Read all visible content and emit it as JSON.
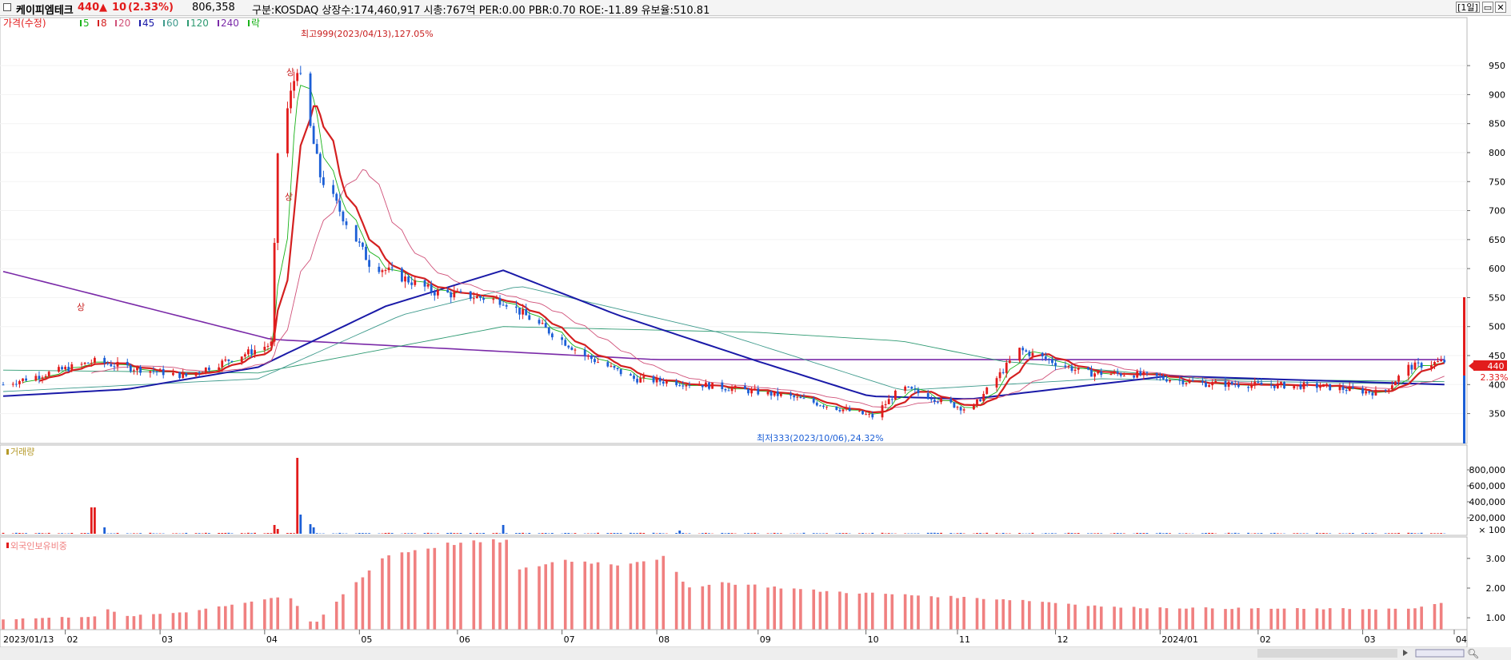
{
  "header": {
    "name": "케이피엠테크",
    "price": "440",
    "arrow": "▲",
    "change": "10",
    "change_pct": "(2.33%)",
    "volume": "806,358",
    "info": "구분:KOSDAQ  상장수:174,460,917  시총:767억  PER:0.00  PBR:0.70  ROE:-11.89  유보율:510.81",
    "period": "[1일]"
  },
  "legend": {
    "price": "가격(수정)",
    "ma": [
      "5",
      "8",
      "20",
      "45",
      "60",
      "120",
      "240"
    ],
    "rak": "락"
  },
  "colors": {
    "up": "#e21c1c",
    "down": "#1c5fd6",
    "ma5": "#19b219",
    "ma8": "#d42020",
    "ma20": "#d05078",
    "ma45": "#1a1aa8",
    "ma60": "#3e9a8c",
    "ma120": "#2e9a72",
    "ma240": "#7a2aa8",
    "foreign": "#f08080"
  },
  "annotations": {
    "high": "최고999(2023/04/13),127.05%",
    "low": "최저333(2023/10/06),24.32%",
    "upper_limit": "상"
  },
  "volume_panel": {
    "title": "거래량",
    "unit": "× 100"
  },
  "foreign_panel": {
    "title": "외국인보유비중"
  },
  "price_badge": {
    "price": "440",
    "pct": "2.33%"
  },
  "chart_data": [
    {
      "type": "candlestick",
      "title": "가격(수정)",
      "ylim": [
        315,
        990
      ],
      "y_ticks": [
        350,
        400,
        450,
        500,
        550,
        600,
        650,
        700,
        750,
        800,
        850,
        900,
        950
      ],
      "anchors": [
        {
          "date": "2023/01/13",
          "close": 400
        },
        {
          "date": "2023/02/10",
          "close": 440
        },
        {
          "date": "2023/02/20",
          "close": 430
        },
        {
          "date": "2023/03/10",
          "close": 415
        },
        {
          "date": "2023/04/05",
          "close": 470
        },
        {
          "date": "2023/04/07",
          "close": 800
        },
        {
          "date": "2023/04/13",
          "close": 950
        },
        {
          "date": "2023/04/20",
          "close": 760
        },
        {
          "date": "2023/05/05",
          "close": 610
        },
        {
          "date": "2023/05/25",
          "close": 560
        },
        {
          "date": "2023/06/15",
          "close": 545
        },
        {
          "date": "2023/07/10",
          "close": 450
        },
        {
          "date": "2023/07/25",
          "close": 410
        },
        {
          "date": "2023/08/15",
          "close": 400
        },
        {
          "date": "2023/09/10",
          "close": 380
        },
        {
          "date": "2023/10/06",
          "close": 345
        },
        {
          "date": "2023/10/15",
          "close": 395
        },
        {
          "date": "2023/11/05",
          "close": 355
        },
        {
          "date": "2023/11/20",
          "close": 460
        },
        {
          "date": "2023/12/10",
          "close": 420
        },
        {
          "date": "2023/12/25",
          "close": 418
        },
        {
          "date": "2024/01/15",
          "close": 402
        },
        {
          "date": "2024/02/20",
          "close": 397
        },
        {
          "date": "2024/03/10",
          "close": 385
        },
        {
          "date": "2024/03/18",
          "close": 430
        },
        {
          "date": "2024/03/29",
          "close": 440
        }
      ],
      "moving_averages": {
        "240": [
          {
            "date": "2023/01/13",
            "value": 595
          },
          {
            "date": "2023/04/05",
            "value": 478
          },
          {
            "date": "2023/08/01",
            "value": 443
          },
          {
            "date": "2024/03/29",
            "value": 443
          }
        ],
        "120": [
          {
            "date": "2023/01/13",
            "value": 425
          },
          {
            "date": "2023/04/01",
            "value": 420
          },
          {
            "date": "2023/06/15",
            "value": 500
          },
          {
            "date": "2023/09/01",
            "value": 490
          },
          {
            "date": "2023/10/15",
            "value": 475
          },
          {
            "date": "2023/11/15",
            "value": 440
          },
          {
            "date": "2024/01/15",
            "value": 410
          },
          {
            "date": "2024/03/29",
            "value": 405
          }
        ],
        "60": [
          {
            "date": "2023/01/13",
            "value": 388
          },
          {
            "date": "2023/04/01",
            "value": 410
          },
          {
            "date": "2023/05/15",
            "value": 520
          },
          {
            "date": "2023/06/20",
            "value": 570
          },
          {
            "date": "2023/08/20",
            "value": 490
          },
          {
            "date": "2023/10/15",
            "value": 390
          },
          {
            "date": "2023/12/15",
            "value": 410
          },
          {
            "date": "2024/03/29",
            "value": 400
          }
        ],
        "45": [
          {
            "date": "2023/01/13",
            "value": 380
          },
          {
            "date": "2023/02/20",
            "value": 392
          },
          {
            "date": "2023/04/01",
            "value": 430
          },
          {
            "date": "2023/05/10",
            "value": 535
          },
          {
            "date": "2023/06/15",
            "value": 597
          },
          {
            "date": "2023/07/20",
            "value": 520
          },
          {
            "date": "2023/09/01",
            "value": 440
          },
          {
            "date": "2023/10/05",
            "value": 380
          },
          {
            "date": "2023/11/05",
            "value": 375
          },
          {
            "date": "2024/01/05",
            "value": 415
          },
          {
            "date": "2024/03/29",
            "value": 400
          }
        ]
      }
    },
    {
      "type": "bar",
      "title": "거래량",
      "ylim": [
        0,
        1000000
      ],
      "y_ticks": [
        200000,
        400000,
        600000,
        800000
      ],
      "spikes": [
        {
          "date": "2023/02/09",
          "value": 330000
        },
        {
          "date": "2023/02/10",
          "value": 330000
        },
        {
          "date": "2023/02/13",
          "value": 80000
        },
        {
          "date": "2023/04/06",
          "value": 110000
        },
        {
          "date": "2023/04/07",
          "value": 60000
        },
        {
          "date": "2023/04/13",
          "value": 950000
        },
        {
          "date": "2023/04/14",
          "value": 240000
        },
        {
          "date": "2023/04/17",
          "value": 120000
        },
        {
          "date": "2023/04/18",
          "value": 80000
        },
        {
          "date": "2023/06/15",
          "value": 110000
        },
        {
          "date": "2023/08/08",
          "value": 40000
        }
      ]
    },
    {
      "type": "bar",
      "title": "외국인보유비중",
      "ylim": [
        0.6,
        3.8
      ],
      "y_ticks": [
        1.0,
        2.0,
        3.0
      ],
      "anchors": [
        {
          "date": "2023/01/13",
          "value": 0.95
        },
        {
          "date": "2023/02/10",
          "value": 1.05
        },
        {
          "date": "2023/02/13",
          "value": 1.3
        },
        {
          "date": "2023/02/20",
          "value": 1.05
        },
        {
          "date": "2023/03/10",
          "value": 1.2
        },
        {
          "date": "2023/04/10",
          "value": 1.75
        },
        {
          "date": "2023/04/18",
          "value": 0.75
        },
        {
          "date": "2023/04/28",
          "value": 1.9
        },
        {
          "date": "2023/05/10",
          "value": 3.1
        },
        {
          "date": "2023/05/30",
          "value": 3.5
        },
        {
          "date": "2023/06/16",
          "value": 3.6
        },
        {
          "date": "2023/06/20",
          "value": 2.6
        },
        {
          "date": "2023/07/03",
          "value": 2.95
        },
        {
          "date": "2023/07/20",
          "value": 2.8
        },
        {
          "date": "2023/08/04",
          "value": 3.05
        },
        {
          "date": "2023/08/10",
          "value": 2.0
        },
        {
          "date": "2023/08/20",
          "value": 2.2
        },
        {
          "date": "2023/09/20",
          "value": 1.9
        },
        {
          "date": "2023/11/20",
          "value": 1.6
        },
        {
          "date": "2023/12/20",
          "value": 1.35
        },
        {
          "date": "2024/02/15",
          "value": 1.3
        },
        {
          "date": "2024/03/20",
          "value": 1.3
        },
        {
          "date": "2024/03/29",
          "value": 1.55
        }
      ]
    }
  ],
  "x_axis": {
    "labels": [
      {
        "date": "2023/01/13",
        "text": "2023/01/13"
      },
      {
        "date": "2023/02/01",
        "text": "02"
      },
      {
        "date": "2023/03/02",
        "text": "03"
      },
      {
        "date": "2023/04/03",
        "text": "04"
      },
      {
        "date": "2023/05/02",
        "text": "05"
      },
      {
        "date": "2023/06/01",
        "text": "06"
      },
      {
        "date": "2023/07/03",
        "text": "07"
      },
      {
        "date": "2023/08/01",
        "text": "08"
      },
      {
        "date": "2023/09/01",
        "text": "09"
      },
      {
        "date": "2023/10/04",
        "text": "10"
      },
      {
        "date": "2023/11/01",
        "text": "11"
      },
      {
        "date": "2023/12/01",
        "text": "12"
      },
      {
        "date": "2024/01/02",
        "text": "2024/01"
      },
      {
        "date": "2024/02/01",
        "text": "02"
      },
      {
        "date": "2024/03/04",
        "text": "03"
      },
      {
        "date": "2024/04/01",
        "text": "04"
      }
    ]
  }
}
